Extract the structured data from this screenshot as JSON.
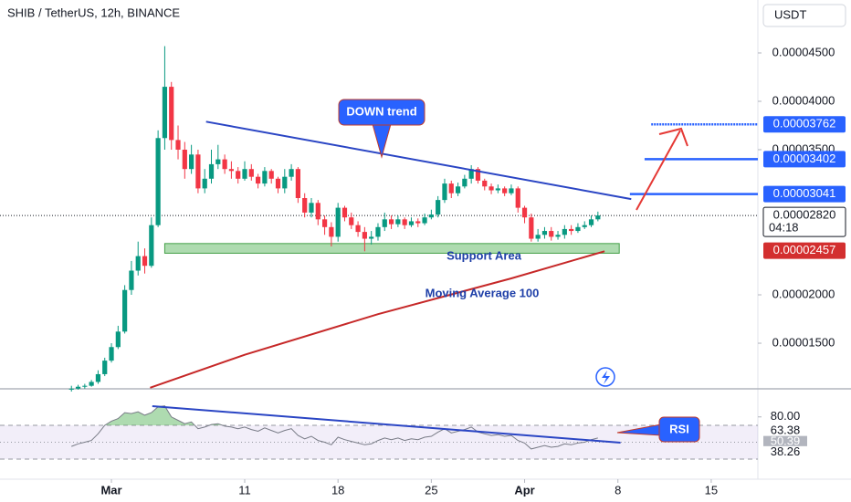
{
  "chart_data": {
    "type": "candlestick",
    "title": "SHIB / TetherUS, 12h, BINANCE",
    "currency": "USDT",
    "up_color": "#089981",
    "down_color": "#f23645",
    "xlim": [
      -8.36,
      48.5
    ],
    "xticks": [
      {
        "value": 0,
        "label": "Mar"
      },
      {
        "value": 10,
        "label": "11"
      },
      {
        "value": 17,
        "label": "18"
      },
      {
        "value": 24,
        "label": "25"
      },
      {
        "value": 31,
        "label": "Apr"
      },
      {
        "value": 38,
        "label": "8"
      },
      {
        "value": 45,
        "label": "15"
      }
    ],
    "ylim": [
      1.038e-05,
      5.047e-05
    ],
    "yticks": [
      {
        "value": 4.5e-05,
        "label": "0.00004500"
      },
      {
        "value": 4e-05,
        "label": "0.00004000"
      },
      {
        "value": 3.5e-05,
        "label": "0.00003500"
      },
      {
        "value": 2e-05,
        "label": "0.00002000"
      },
      {
        "value": 1.5e-05,
        "label": "0.00001500"
      }
    ],
    "candles": {
      "x": [
        -3,
        -2.5,
        -2,
        -1.5,
        -1,
        -0.5,
        0,
        0.5,
        1,
        1.5,
        2,
        2.5,
        3,
        3.5,
        4,
        4.5,
        5,
        5.5,
        6,
        6.5,
        7,
        7.5,
        8,
        8.5,
        9,
        9.5,
        10,
        10.5,
        11,
        11.5,
        12,
        12.5,
        13,
        13.5,
        14,
        14.5,
        15,
        15.5,
        16,
        16.5,
        17,
        17.5,
        18,
        18.5,
        19,
        19.5,
        20,
        20.5,
        21,
        21.5,
        22,
        22.5,
        23,
        23.5,
        24,
        24.5,
        25,
        25.5,
        26,
        26.5,
        27,
        27.5,
        28,
        28.5,
        29,
        29.5,
        30,
        30.5,
        31,
        31.5,
        32,
        32.5,
        33,
        33.5,
        34,
        34.5,
        35,
        35.5,
        36,
        36.5
      ],
      "open": [
        1.02e-05,
        1.03e-05,
        1.05e-05,
        1.06e-05,
        1.1e-05,
        1.18e-05,
        1.32e-05,
        1.46e-05,
        1.62e-05,
        2.05e-05,
        2.25e-05,
        2.4e-05,
        2.3e-05,
        2.72e-05,
        3.62e-05,
        4.15e-05,
        3.6e-05,
        3.5e-05,
        3.3e-05,
        3.45e-05,
        3.1e-05,
        3.2e-05,
        3.35e-05,
        3.4e-05,
        3.3e-05,
        3.28e-05,
        3.2e-05,
        3.3e-05,
        3.22e-05,
        3.15e-05,
        3.28e-05,
        3.2e-05,
        3.1e-05,
        3.22e-05,
        3.3e-05,
        3e-05,
        2.85e-05,
        2.95e-05,
        2.78e-05,
        2.7e-05,
        2.6e-05,
        2.9e-05,
        2.8e-05,
        2.72e-05,
        2.65e-05,
        2.58e-05,
        2.6e-05,
        2.7e-05,
        2.78e-05,
        2.73e-05,
        2.78e-05,
        2.72e-05,
        2.76e-05,
        2.74e-05,
        2.8e-05,
        2.83e-05,
        2.98e-05,
        3.15e-05,
        3.05e-05,
        3.12e-05,
        3.2e-05,
        3.3e-05,
        3.18e-05,
        3.12e-05,
        3.08e-05,
        3.1e-05,
        3.05e-05,
        3.1e-05,
        2.9e-05,
        2.8e-05,
        2.58e-05,
        2.62e-05,
        2.66e-05,
        2.6e-05,
        2.62e-05,
        2.68e-05,
        2.66e-05,
        2.7e-05,
        2.72e-05,
        2.78e-05
      ],
      "high": [
        1.06e-05,
        1.07e-05,
        1.08e-05,
        1.12e-05,
        1.22e-05,
        1.35e-05,
        1.5e-05,
        1.68e-05,
        2.1e-05,
        2.35e-05,
        2.55e-05,
        2.48e-05,
        2.8e-05,
        3.7e-05,
        4.57e-05,
        4.2e-05,
        3.75e-05,
        3.58e-05,
        3.55e-05,
        3.5e-05,
        3.3e-05,
        3.5e-05,
        3.55e-05,
        3.45e-05,
        3.38e-05,
        3.32e-05,
        3.38e-05,
        3.35e-05,
        3.25e-05,
        3.32e-05,
        3.3e-05,
        3.22e-05,
        3.3e-05,
        3.35e-05,
        3.32e-05,
        3.05e-05,
        3e-05,
        2.98e-05,
        2.82e-05,
        2.75e-05,
        2.95e-05,
        2.92e-05,
        2.85e-05,
        2.76e-05,
        2.7e-05,
        2.66e-05,
        2.74e-05,
        2.85e-05,
        2.82e-05,
        2.82e-05,
        2.8e-05,
        2.8e-05,
        2.79e-05,
        2.84e-05,
        2.88e-05,
        3.02e-05,
        3.2e-05,
        3.18e-05,
        3.16e-05,
        3.24e-05,
        3.34e-05,
        3.32e-05,
        3.2e-05,
        3.15e-05,
        3.14e-05,
        3.12e-05,
        3.14e-05,
        3.12e-05,
        2.92e-05,
        2.84e-05,
        2.68e-05,
        2.7e-05,
        2.7e-05,
        2.66e-05,
        2.72e-05,
        2.72e-05,
        2.74e-05,
        2.76e-05,
        2.82e-05,
        2.86e-05
      ],
      "low": [
        1e-05,
        1.02e-05,
        1.03e-05,
        1.05e-05,
        1.08e-05,
        1.16e-05,
        1.3e-05,
        1.44e-05,
        1.6e-05,
        2e-05,
        2.2e-05,
        2.22e-05,
        2.28e-05,
        2.7e-05,
        3.5e-05,
        3.5e-05,
        3.4e-05,
        3.2e-05,
        3.25e-05,
        3.05e-05,
        3.05e-05,
        3.15e-05,
        3.3e-05,
        3.25e-05,
        3.2e-05,
        3.15e-05,
        3.18e-05,
        3.18e-05,
        3.1e-05,
        3.12e-05,
        3.15e-05,
        3.05e-05,
        3.05e-05,
        3.18e-05,
        2.95e-05,
        2.8e-05,
        2.8e-05,
        2.72e-05,
        2.62e-05,
        2.5e-05,
        2.55e-05,
        2.76e-05,
        2.68e-05,
        2.6e-05,
        2.45e-05,
        2.52e-05,
        2.56e-05,
        2.66e-05,
        2.68e-05,
        2.7e-05,
        2.68e-05,
        2.7e-05,
        2.7e-05,
        2.72e-05,
        2.78e-05,
        2.8e-05,
        2.95e-05,
        3e-05,
        3.02e-05,
        3.1e-05,
        3.15e-05,
        3.15e-05,
        3.08e-05,
        3.04e-05,
        3.05e-05,
        3.02e-05,
        3.03e-05,
        2.85e-05,
        2.74e-05,
        2.55e-05,
        2.55e-05,
        2.58e-05,
        2.56e-05,
        2.57e-05,
        2.58e-05,
        2.62e-05,
        2.64e-05,
        2.68e-05,
        2.7e-05,
        2.76e-05
      ],
      "close": [
        1.03e-05,
        1.05e-05,
        1.06e-05,
        1.1e-05,
        1.18e-05,
        1.32e-05,
        1.46e-05,
        1.62e-05,
        2.05e-05,
        2.25e-05,
        2.4e-05,
        2.3e-05,
        2.72e-05,
        3.62e-05,
        4.15e-05,
        3.6e-05,
        3.5e-05,
        3.3e-05,
        3.45e-05,
        3.1e-05,
        3.2e-05,
        3.35e-05,
        3.4e-05,
        3.3e-05,
        3.28e-05,
        3.2e-05,
        3.3e-05,
        3.22e-05,
        3.15e-05,
        3.28e-05,
        3.2e-05,
        3.1e-05,
        3.22e-05,
        3.3e-05,
        3e-05,
        2.85e-05,
        2.95e-05,
        2.78e-05,
        2.7e-05,
        2.6e-05,
        2.9e-05,
        2.8e-05,
        2.72e-05,
        2.65e-05,
        2.58e-05,
        2.6e-05,
        2.7e-05,
        2.78e-05,
        2.73e-05,
        2.78e-05,
        2.72e-05,
        2.76e-05,
        2.74e-05,
        2.8e-05,
        2.83e-05,
        2.98e-05,
        3.15e-05,
        3.05e-05,
        3.12e-05,
        3.2e-05,
        3.3e-05,
        3.18e-05,
        3.12e-05,
        3.08e-05,
        3.1e-05,
        3.05e-05,
        3.1e-05,
        2.9e-05,
        2.8e-05,
        2.58e-05,
        2.62e-05,
        2.66e-05,
        2.6e-05,
        2.62e-05,
        2.68e-05,
        2.66e-05,
        2.7e-05,
        2.72e-05,
        2.78e-05,
        2.82e-05
      ]
    },
    "moving_average": {
      "name": "Moving Average 100",
      "color": "#c62828",
      "x": [
        2.9,
        10,
        20,
        30,
        37
      ],
      "y": [
        1.04e-05,
        1.38e-05,
        1.8e-05,
        2.17e-05,
        2.45e-05
      ],
      "last": {
        "value": 2.457e-05,
        "label": "0.00002457"
      }
    },
    "trendline": {
      "name": "DOWN trend",
      "color": "#2a45c4",
      "x": [
        7.1,
        39.0
      ],
      "y": [
        3.79e-05,
        2.99e-05
      ]
    },
    "support_area": {
      "name": "Support Area",
      "x": [
        4.0,
        38.1
      ],
      "y": [
        2.43e-05,
        2.53e-05
      ]
    },
    "levels": [
      {
        "value": 3.762e-05,
        "label": "0.00003762",
        "x0": 40.5
      },
      {
        "value": 3.402e-05,
        "label": "0.00003402",
        "x0": 40.0
      },
      {
        "value": 3.041e-05,
        "label": "0.00003041",
        "x0": 38.9
      }
    ],
    "current_price": {
      "value": 2.82e-05,
      "label": "0.00002820",
      "countdown": "04:18"
    },
    "rsi": {
      "name": "RSI",
      "color": "#787b86",
      "ylim": [
        6.2,
        111.1
      ],
      "yticks": [
        {
          "value": 80,
          "label": "80.00"
        }
      ],
      "bands": [
        70,
        50,
        30
      ],
      "values": [
        45,
        48,
        50,
        52,
        60,
        70,
        75,
        78,
        85,
        84,
        86,
        82,
        85,
        92,
        93,
        80,
        76,
        72,
        74,
        66,
        68,
        71,
        72,
        69,
        68,
        66,
        68,
        65,
        63,
        67,
        64,
        61,
        64,
        66,
        58,
        54,
        57,
        52,
        50,
        47,
        56,
        53,
        51,
        49,
        47,
        48,
        52,
        55,
        53,
        55,
        52,
        54,
        53,
        56,
        57,
        62,
        66,
        61,
        63,
        65,
        68,
        62,
        60,
        58,
        59,
        57,
        58,
        52,
        49,
        42,
        44,
        46,
        44,
        45,
        48,
        47,
        49,
        50,
        53,
        55
      ],
      "markers": [
        {
          "value": 63.38,
          "label": "63.38"
        },
        {
          "value": 50.39,
          "label": "50.39"
        },
        {
          "value": 38.26,
          "label": "38.26"
        }
      ],
      "trendline": {
        "x": [
          3.07,
          38.2
        ],
        "y": [
          92.7,
          49.5
        ]
      }
    }
  }
}
